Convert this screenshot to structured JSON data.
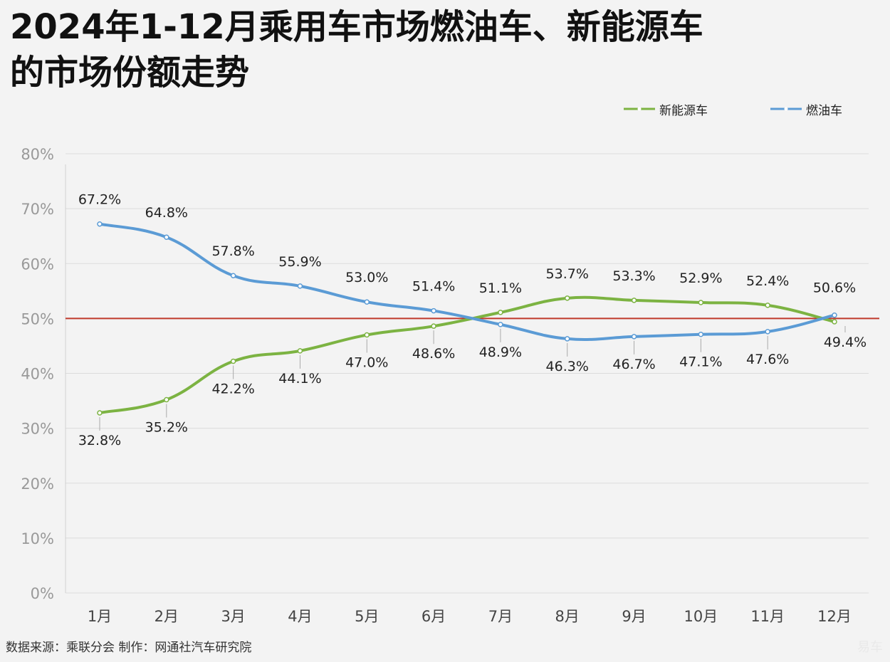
{
  "header": {
    "title_line1": "2024年1-12月乘用车市场燃油车、新能源车",
    "title_line2": "的市场份额走势"
  },
  "footer": {
    "source": "数据来源：乘联分会  制作：网通社汽车研究院",
    "watermark": "易车"
  },
  "chart_data": {
    "type": "line",
    "categories": [
      "1月",
      "2月",
      "3月",
      "4月",
      "5月",
      "6月",
      "7月",
      "8月",
      "9月",
      "10月",
      "11月",
      "12月"
    ],
    "series": [
      {
        "name": "新能源车",
        "color": "#7cb342",
        "values": [
          32.8,
          35.2,
          42.2,
          44.1,
          47.0,
          48.6,
          51.1,
          53.7,
          53.3,
          52.9,
          52.4,
          49.4
        ],
        "labels": [
          "32.8%",
          "35.2%",
          "42.2%",
          "44.1%",
          "47.0%",
          "48.6%",
          "51.1%",
          "53.7%",
          "53.3%",
          "52.9%",
          "52.4%",
          "49.4%"
        ]
      },
      {
        "name": "燃油车",
        "color": "#5b9bd5",
        "values": [
          67.2,
          64.8,
          57.8,
          55.9,
          53.0,
          51.4,
          48.9,
          46.3,
          46.7,
          47.1,
          47.6,
          50.6
        ],
        "labels": [
          "67.2%",
          "64.8%",
          "57.8%",
          "55.9%",
          "53.0%",
          "51.4%",
          "48.9%",
          "46.3%",
          "46.7%",
          "47.1%",
          "47.6%",
          "50.6%"
        ]
      }
    ],
    "y_ticks": [
      "0%",
      "10%",
      "20%",
      "30%",
      "40%",
      "50%",
      "60%",
      "70%",
      "80%"
    ],
    "ylim": [
      0,
      80
    ],
    "reference_line": {
      "value": 50,
      "color": "#c0392b"
    },
    "grid": true,
    "legend_position": "top-right"
  }
}
